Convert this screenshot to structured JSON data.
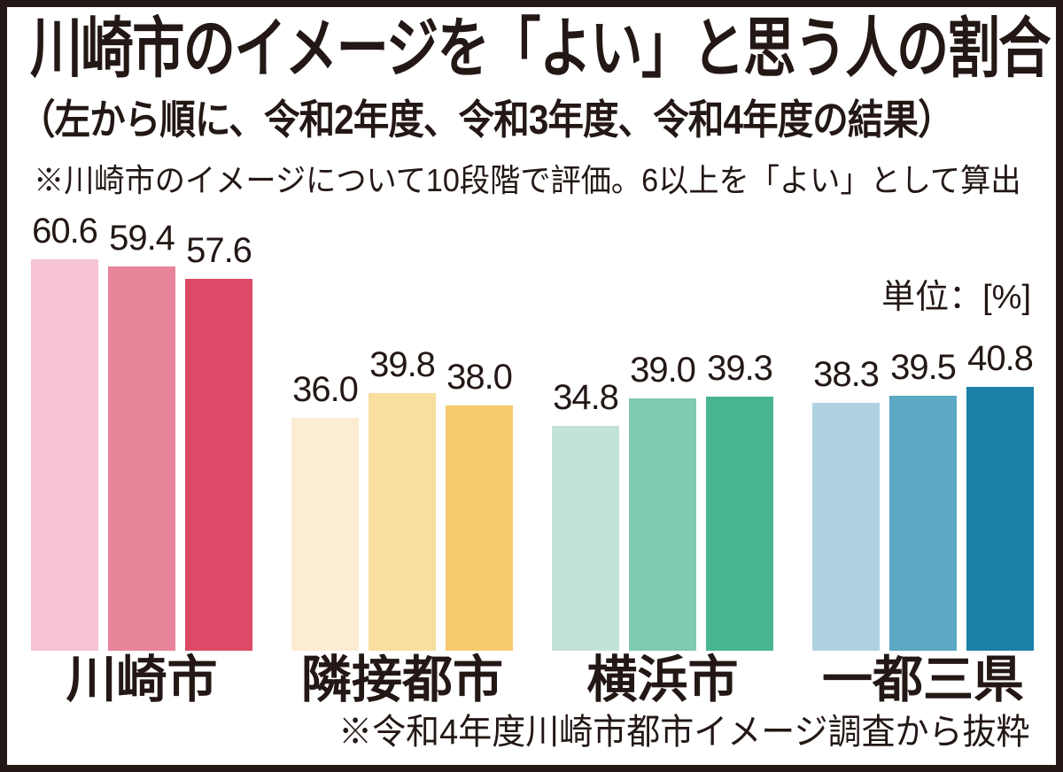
{
  "frame": {
    "ink_color": "#231815",
    "background_color": "#ffffff"
  },
  "header": {
    "title": "川崎市のイメージを「よい」と思う人の割合",
    "subtitle": "（左から順に、令和2年度、令和3年度、令和4年度の結果）",
    "note": "※川崎市のイメージについて10段階で評価。6以上を「よい」として算出"
  },
  "chart_data": {
    "type": "bar",
    "title": "川崎市のイメージを「よい」と思う人の割合",
    "unit_label": "単位：[%]",
    "source_note": "※令和4年度川崎市都市イメージ調査から抜粋",
    "categories": [
      "川崎市",
      "隣接都市",
      "横浜市",
      "一都三県"
    ],
    "series_names": [
      "令和2年度",
      "令和3年度",
      "令和4年度"
    ],
    "series": [
      {
        "name": "令和2年度",
        "values": [
          60.6,
          36.0,
          34.8,
          38.3
        ]
      },
      {
        "name": "令和3年度",
        "values": [
          59.4,
          39.8,
          39.0,
          39.5
        ]
      },
      {
        "name": "令和4年度",
        "values": [
          57.6,
          38.0,
          39.3,
          40.8
        ]
      }
    ],
    "groups": [
      {
        "label": "川崎市",
        "values": [
          60.6,
          59.4,
          57.6
        ],
        "colors": [
          "#f5c3d2",
          "#e8849a",
          "#dc4a67"
        ]
      },
      {
        "label": "隣接都市",
        "values": [
          36.0,
          39.8,
          38.0
        ],
        "colors": [
          "#fbecd2",
          "#f8dfa0",
          "#f6ca6e"
        ]
      },
      {
        "label": "横浜市",
        "values": [
          34.8,
          39.0,
          39.3
        ],
        "colors": [
          "#c4e3d7",
          "#7fcab1",
          "#48b58e"
        ]
      },
      {
        "label": "一都三県",
        "values": [
          38.3,
          39.5,
          40.8
        ],
        "colors": [
          "#afd2e1",
          "#5da8c3",
          "#1b81a9"
        ]
      }
    ],
    "value_label_decimals": 1,
    "ylim": [
      0,
      65
    ],
    "grid": false,
    "axis": "none",
    "legend": "none"
  }
}
